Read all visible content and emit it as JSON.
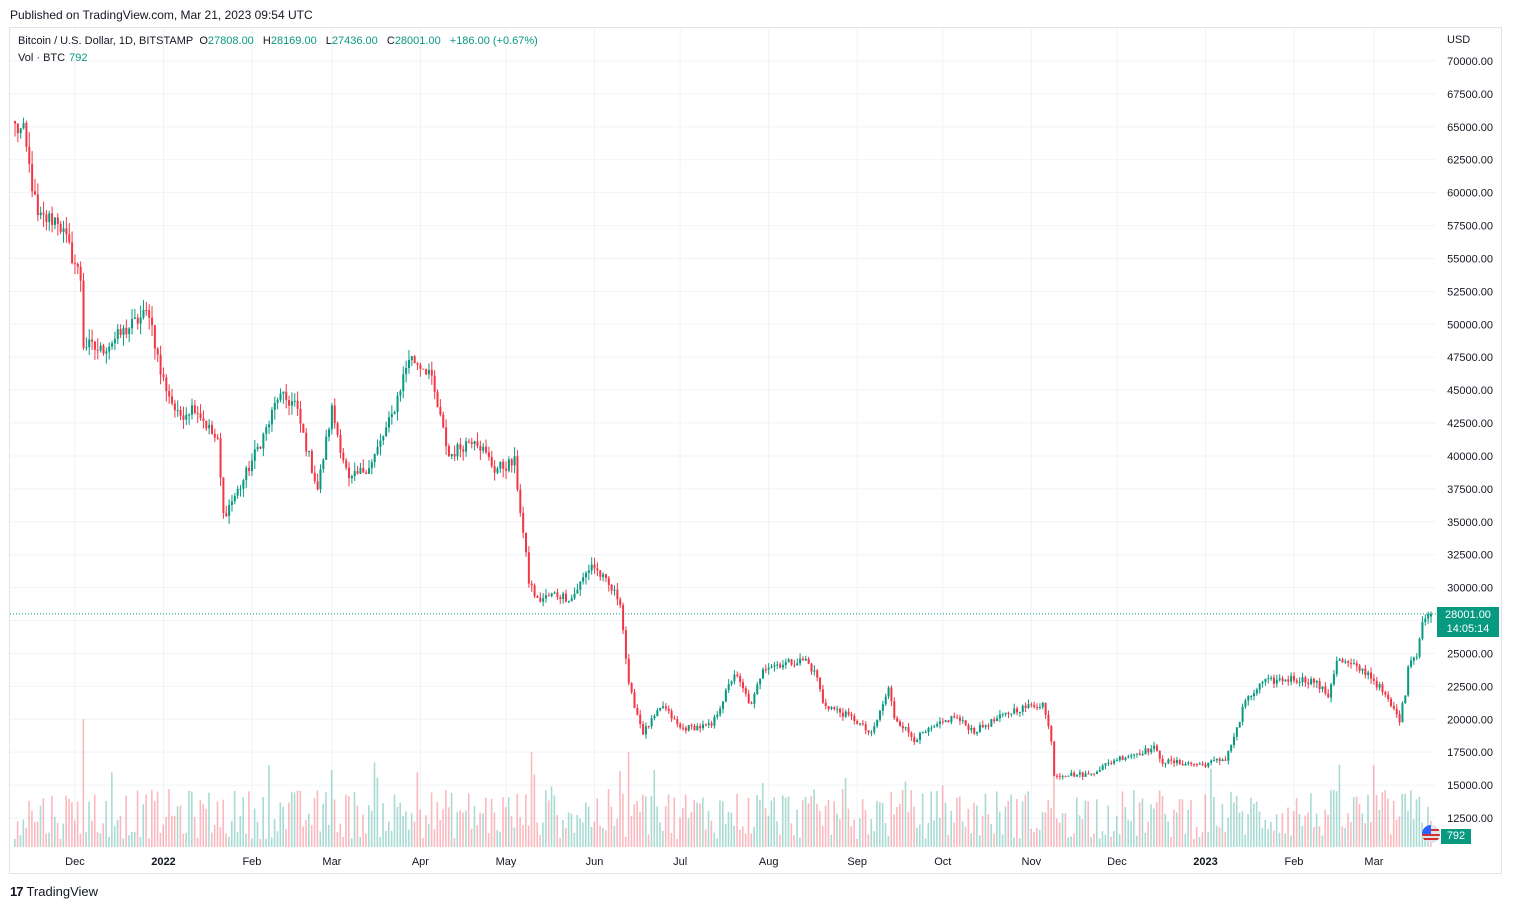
{
  "header": {
    "published": "Published on TradingView.com, Mar 21, 2023 09:54 UTC"
  },
  "legend": {
    "symbol": "Bitcoin / U.S. Dollar, 1D, BITSTAMP",
    "open_label": "O",
    "open": "27808.00",
    "high_label": "H",
    "high": "28169.00",
    "low_label": "L",
    "low": "27436.00",
    "close_label": "C",
    "close": "28001.00",
    "change": "+186.00 (+0.67%)",
    "volume_label": "Vol · BTC",
    "volume": "792"
  },
  "price_axis": {
    "currency": "USD",
    "ticks": [
      "70000.00",
      "67500.00",
      "65000.00",
      "62500.00",
      "60000.00",
      "57500.00",
      "55000.00",
      "52500.00",
      "50000.00",
      "47500.00",
      "45000.00",
      "42500.00",
      "40000.00",
      "37500.00",
      "35000.00",
      "32500.00",
      "30000.00",
      "27500.00",
      "25000.00",
      "22500.00",
      "20000.00",
      "17500.00",
      "15000.00",
      "12500.00"
    ]
  },
  "last_price_tag": {
    "price": "28001.00",
    "countdown": "14:05:14"
  },
  "volume_tag": "792",
  "footer": {
    "brand": "TradingView",
    "logo": "17"
  },
  "colors": {
    "up": "#089981",
    "down": "#f23645",
    "grid": "#f0f3fa"
  },
  "chart_data": {
    "type": "candlestick",
    "title": "Bitcoin / U.S. Dollar, 1D, BITSTAMP",
    "ylim": [
      10000,
      71500
    ],
    "time_labels": [
      "Dec",
      "2022",
      "Feb",
      "Mar",
      "Apr",
      "May",
      "Jun",
      "Jul",
      "Aug",
      "Sep",
      "Oct",
      "Nov",
      "Dec",
      "2023",
      "Feb",
      "Mar"
    ],
    "keypoints": [
      [
        "2021-11-10",
        65000
      ],
      [
        "2021-11-13",
        64500
      ],
      [
        "2021-11-18",
        58000
      ],
      [
        "2021-11-25",
        58000
      ],
      [
        "2021-12-03",
        53500
      ],
      [
        "2021-12-04",
        48500
      ],
      [
        "2021-12-10",
        48000
      ],
      [
        "2021-12-27",
        51000
      ],
      [
        "2021-12-31",
        46300
      ],
      [
        "2022-01-06",
        43000
      ],
      [
        "2022-01-12",
        43800
      ],
      [
        "2022-01-20",
        41000
      ],
      [
        "2022-01-22",
        35500
      ],
      [
        "2022-01-28",
        37700
      ],
      [
        "2022-02-07",
        42500
      ],
      [
        "2022-02-10",
        44500
      ],
      [
        "2022-02-16",
        44000
      ],
      [
        "2022-02-24",
        37500
      ],
      [
        "2022-03-01",
        43500
      ],
      [
        "2022-03-07",
        38000
      ],
      [
        "2022-03-15",
        39500
      ],
      [
        "2022-03-22",
        43000
      ],
      [
        "2022-03-28",
        47500
      ],
      [
        "2022-04-04",
        46500
      ],
      [
        "2022-04-11",
        40000
      ],
      [
        "2022-04-20",
        41500
      ],
      [
        "2022-04-27",
        39000
      ],
      [
        "2022-05-04",
        39500
      ],
      [
        "2022-05-09",
        30500
      ],
      [
        "2022-05-12",
        29000
      ],
      [
        "2022-05-18",
        29500
      ],
      [
        "2022-05-24",
        29200
      ],
      [
        "2022-05-31",
        31800
      ],
      [
        "2022-06-10",
        29000
      ],
      [
        "2022-06-13",
        22500
      ],
      [
        "2022-06-18",
        19000
      ],
      [
        "2022-06-25",
        21000
      ],
      [
        "2022-07-01",
        19300
      ],
      [
        "2022-07-12",
        19500
      ],
      [
        "2022-07-20",
        23500
      ],
      [
        "2022-07-26",
        21000
      ],
      [
        "2022-07-30",
        24000
      ],
      [
        "2022-08-14",
        24500
      ],
      [
        "2022-08-18",
        23200
      ],
      [
        "2022-08-20",
        21200
      ],
      [
        "2022-08-31",
        20000
      ],
      [
        "2022-09-06",
        18800
      ],
      [
        "2022-09-12",
        22300
      ],
      [
        "2022-09-14",
        20200
      ],
      [
        "2022-09-21",
        18500
      ],
      [
        "2022-10-05",
        20200
      ],
      [
        "2022-10-12",
        19100
      ],
      [
        "2022-10-26",
        20700
      ],
      [
        "2022-11-05",
        21200
      ],
      [
        "2022-11-08",
        18500
      ],
      [
        "2022-11-09",
        15800
      ],
      [
        "2022-11-21",
        15800
      ],
      [
        "2022-12-01",
        17000
      ],
      [
        "2022-12-14",
        17800
      ],
      [
        "2022-12-17",
        16800
      ],
      [
        "2022-12-31",
        16550
      ],
      [
        "2023-01-08",
        17000
      ],
      [
        "2023-01-13",
        19800
      ],
      [
        "2023-01-14",
        21000
      ],
      [
        "2023-01-21",
        22800
      ],
      [
        "2023-01-31",
        23100
      ],
      [
        "2023-02-08",
        22900
      ],
      [
        "2023-02-13",
        21800
      ],
      [
        "2023-02-16",
        24500
      ],
      [
        "2023-02-22",
        24000
      ],
      [
        "2023-02-27",
        23500
      ],
      [
        "2023-03-03",
        22400
      ],
      [
        "2023-03-10",
        20000
      ],
      [
        "2023-03-12",
        22000
      ],
      [
        "2023-03-13",
        24300
      ],
      [
        "2023-03-16",
        25000
      ],
      [
        "2023-03-18",
        27400
      ],
      [
        "2023-03-21",
        28001
      ]
    ],
    "volume_spikes": [
      [
        "2021-12-04",
        20000
      ],
      [
        "2022-05-10",
        17500
      ],
      [
        "2022-06-13",
        17500
      ],
      [
        "2022-11-09",
        17000
      ]
    ],
    "last_price": 28001,
    "volume_last": 792
  }
}
